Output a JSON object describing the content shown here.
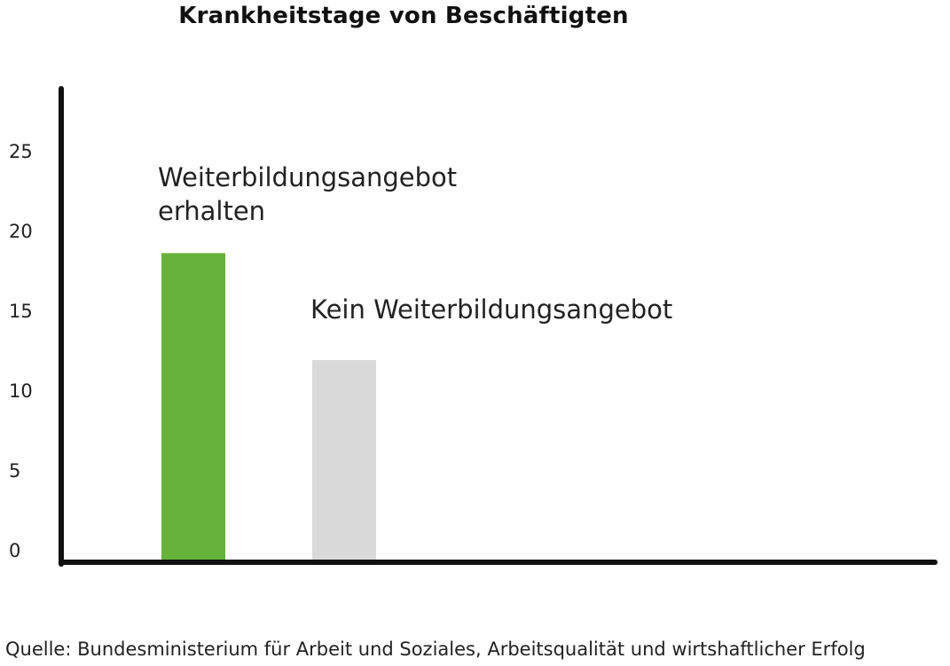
{
  "chart_data": {
    "type": "bar",
    "title": "Krankheitstage von Beschäftigten",
    "categories": [
      "Weiterbildungsangebot erhalten",
      "Kein Weiterbildungsangebot"
    ],
    "category_label_lines": [
      [
        "Weiterbildungsangebot",
        "erhalten"
      ],
      [
        "Kein Weiterbildungsangebot"
      ]
    ],
    "values": [
      19.2,
      12.5
    ],
    "colors": [
      "#66b33c",
      "#d9dad9"
    ],
    "xlabel": "",
    "ylabel": "",
    "ylim": [
      0,
      30
    ],
    "yticks": [
      0,
      5,
      10,
      15,
      20,
      25
    ],
    "ytick_labels": [
      "0",
      "5",
      "10",
      "15",
      "20",
      "25"
    ],
    "grid": false,
    "legend": "none"
  },
  "source": "Quelle: Bundesministerium für Arbeit und Soziales, Arbeitsqualität und wirtshaftlicher Erfolg"
}
